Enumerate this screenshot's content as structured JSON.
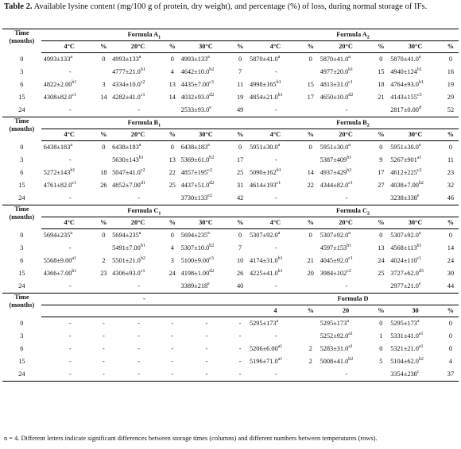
{
  "caption": {
    "label": "Table 2.",
    "text": "Available lysine content (mg/100 g of protein, dry weight), and percentage (%) of loss, during normal storage of IFs."
  },
  "time_header": "Time (months)",
  "temp_headers": [
    "4°C",
    "%",
    "20°C",
    "%",
    "30°C",
    "%"
  ],
  "temp_headers_d": [
    "4",
    "%",
    "20",
    "%",
    "30",
    "%"
  ],
  "blocks": [
    {
      "left_formula": {
        "name": "Formula A",
        "sub": "1"
      },
      "right_formula": {
        "name": "Formula A",
        "sub": "2"
      },
      "rows": [
        {
          "time": "0",
          "cells": [
            [
              "4993±133",
              "a"
            ],
            [
              "0",
              ""
            ],
            [
              "4993±133",
              "a"
            ],
            [
              "0",
              ""
            ],
            [
              "4993±133",
              "a"
            ],
            [
              "0",
              ""
            ],
            [
              "5870±41.0",
              "a"
            ],
            [
              "0",
              ""
            ],
            [
              "5870±41.0",
              "a"
            ],
            [
              "0",
              ""
            ],
            [
              "5870±41.0",
              "a"
            ],
            [
              "0",
              ""
            ]
          ]
        },
        {
          "time": "3",
          "cells": [
            [
              "-",
              ""
            ],
            [
              "",
              ""
            ],
            [
              "4777±21.0",
              "b1"
            ],
            [
              "4",
              ""
            ],
            [
              "4642±10.0",
              "b2"
            ],
            [
              "7",
              ""
            ],
            [
              "-",
              ""
            ],
            [
              "",
              ""
            ],
            [
              "4977±20.0",
              "b1"
            ],
            [
              "15",
              ""
            ],
            [
              "4940±124",
              "b1"
            ],
            [
              "16",
              ""
            ]
          ]
        },
        {
          "time": "6",
          "cells": [
            [
              "4822±2.00",
              "b1"
            ],
            [
              "3",
              ""
            ],
            [
              "4334±10.0",
              "c2"
            ],
            [
              "13",
              ""
            ],
            [
              "4435±7.00",
              "c3"
            ],
            [
              "11",
              ""
            ],
            [
              "4998±165",
              "b1"
            ],
            [
              "15",
              ""
            ],
            [
              "4813±31.0",
              "c1"
            ],
            [
              "18",
              ""
            ],
            [
              "4764±93.0",
              "b1"
            ],
            [
              "19",
              ""
            ]
          ]
        },
        {
          "time": "15",
          "cells": [
            [
              "4308±82.0",
              "c1"
            ],
            [
              "14",
              ""
            ],
            [
              "4282±41.0",
              "c1"
            ],
            [
              "14",
              ""
            ],
            [
              "4032±93.0",
              "d2"
            ],
            [
              "19",
              ""
            ],
            [
              "4854±21.0",
              "b1"
            ],
            [
              "17",
              ""
            ],
            [
              "4650±10.0",
              "d2"
            ],
            [
              "21",
              ""
            ],
            [
              "4143±155",
              "c3"
            ],
            [
              "29",
              ""
            ]
          ]
        },
        {
          "time": "24",
          "cells": [
            [
              "-",
              ""
            ],
            [
              "",
              ""
            ],
            [
              "-",
              ""
            ],
            [
              "",
              ""
            ],
            [
              "2533±93.0",
              "e"
            ],
            [
              "49",
              ""
            ],
            [
              "-",
              ""
            ],
            [
              "",
              ""
            ],
            [
              "-",
              ""
            ],
            [
              "",
              ""
            ],
            [
              "2817±0.00",
              "d"
            ],
            [
              "52",
              ""
            ]
          ]
        }
      ]
    },
    {
      "left_formula": {
        "name": "Formula B",
        "sub": "1"
      },
      "right_formula": {
        "name": "Formula B",
        "sub": "2"
      },
      "rows": [
        {
          "time": "0",
          "cells": [
            [
              "6438±183",
              "a"
            ],
            [
              "0",
              ""
            ],
            [
              "6438±183",
              "a"
            ],
            [
              "0",
              ""
            ],
            [
              "6438±183",
              "a"
            ],
            [
              "0",
              ""
            ],
            [
              "5951±30.0",
              "a"
            ],
            [
              "0",
              ""
            ],
            [
              "5951±30.0",
              "a"
            ],
            [
              "0",
              ""
            ],
            [
              "5951±30.0",
              "a"
            ],
            [
              "0",
              ""
            ]
          ]
        },
        {
          "time": "3",
          "cells": [
            [
              "-",
              ""
            ],
            [
              "",
              ""
            ],
            [
              "5630±143",
              "b1"
            ],
            [
              "13",
              ""
            ],
            [
              "5369±61.0",
              "b2"
            ],
            [
              "17",
              ""
            ],
            [
              "-",
              ""
            ],
            [
              "",
              ""
            ],
            [
              "5387±409",
              "b1"
            ],
            [
              "9",
              ""
            ],
            [
              "5267±901",
              "a1"
            ],
            [
              "11",
              ""
            ]
          ]
        },
        {
          "time": "6",
          "cells": [
            [
              "5272±143",
              "b1"
            ],
            [
              "18",
              ""
            ],
            [
              "5047±41.0",
              "c2"
            ],
            [
              "22",
              ""
            ],
            [
              "4857±195",
              "c2"
            ],
            [
              "25",
              ""
            ],
            [
              "5090±162",
              "b1"
            ],
            [
              "14",
              ""
            ],
            [
              "4937±429",
              "b2"
            ],
            [
              "17",
              ""
            ],
            [
              "4612±225",
              "c2"
            ],
            [
              "23",
              ""
            ]
          ]
        },
        {
          "time": "15",
          "cells": [
            [
              "4761±82.0",
              "c1"
            ],
            [
              "26",
              ""
            ],
            [
              "4852±7.00",
              "d1"
            ],
            [
              "25",
              ""
            ],
            [
              "4437±51.0",
              "d2"
            ],
            [
              "31",
              ""
            ],
            [
              "4614±193",
              "c1"
            ],
            [
              "22",
              ""
            ],
            [
              "4344±82.0",
              "c1"
            ],
            [
              "27",
              ""
            ],
            [
              "4038±7.00",
              "b2"
            ],
            [
              "32",
              ""
            ]
          ]
        },
        {
          "time": "24",
          "cells": [
            [
              "-",
              ""
            ],
            [
              "",
              ""
            ],
            [
              "-",
              ""
            ],
            [
              "",
              ""
            ],
            [
              "3730±133",
              "e2"
            ],
            [
              "42",
              ""
            ],
            [
              "-",
              ""
            ],
            [
              "",
              ""
            ],
            [
              "-",
              ""
            ],
            [
              "",
              ""
            ],
            [
              "3238±338",
              "e"
            ],
            [
              "46",
              ""
            ]
          ]
        }
      ]
    },
    {
      "left_formula": {
        "name": "Formula C",
        "sub": "1"
      },
      "right_formula": {
        "name": "Formula C",
        "sub": "2"
      },
      "rows": [
        {
          "time": "0",
          "cells": [
            [
              "5694±235",
              "a"
            ],
            [
              "0",
              ""
            ],
            [
              "5694±235",
              "a"
            ],
            [
              "0",
              ""
            ],
            [
              "5694±235",
              "a"
            ],
            [
              "0",
              ""
            ],
            [
              "5307±92.0",
              "a"
            ],
            [
              "0",
              ""
            ],
            [
              "5307±92.0",
              "a"
            ],
            [
              "0",
              ""
            ],
            [
              "5307±92.0",
              "a"
            ],
            [
              "0",
              ""
            ]
          ]
        },
        {
          "time": "3",
          "cells": [
            [
              "-",
              ""
            ],
            [
              "",
              ""
            ],
            [
              "5491±7.00",
              "b1"
            ],
            [
              "4",
              ""
            ],
            [
              "5307±10.0",
              "b2"
            ],
            [
              "7",
              ""
            ],
            [
              "-",
              ""
            ],
            [
              "",
              ""
            ],
            [
              "4597±153",
              "b1"
            ],
            [
              "13",
              ""
            ],
            [
              "4568±113",
              "b1"
            ],
            [
              "14",
              ""
            ]
          ]
        },
        {
          "time": "6",
          "cells": [
            [
              "5568±9.00",
              "a1"
            ],
            [
              "2",
              ""
            ],
            [
              "5501±21.0",
              "b2"
            ],
            [
              "3",
              ""
            ],
            [
              "5100±9.00",
              "c3"
            ],
            [
              "10",
              ""
            ],
            [
              "4174±31.0",
              "b1"
            ],
            [
              "21",
              ""
            ],
            [
              "4045±92.0",
              "c1"
            ],
            [
              "24",
              ""
            ],
            [
              "4024±110",
              "c1"
            ],
            [
              "24",
              ""
            ]
          ]
        },
        {
          "time": "15",
          "cells": [
            [
              "4366±7.00",
              "b1"
            ],
            [
              "23",
              ""
            ],
            [
              "4306±93.0",
              "c1"
            ],
            [
              "24",
              ""
            ],
            [
              "4198±1.00",
              "d2"
            ],
            [
              "26",
              ""
            ],
            [
              "4225±41.0",
              "b1"
            ],
            [
              "20",
              ""
            ],
            [
              "3984±102",
              "c2"
            ],
            [
              "25",
              ""
            ],
            [
              "3727±62.0",
              "d3"
            ],
            [
              "30",
              ""
            ]
          ]
        },
        {
          "time": "24",
          "cells": [
            [
              "-",
              ""
            ],
            [
              "",
              ""
            ],
            [
              "-",
              ""
            ],
            [
              "",
              ""
            ],
            [
              "3389±218",
              "e"
            ],
            [
              "40",
              ""
            ],
            [
              "-",
              ""
            ],
            [
              "",
              ""
            ],
            [
              "-",
              ""
            ],
            [
              "",
              ""
            ],
            [
              "2977±21.0",
              "e"
            ],
            [
              "44",
              ""
            ]
          ]
        }
      ]
    },
    {
      "left_formula": {
        "name": "-",
        "sub": ""
      },
      "right_formula": {
        "name": "Formula D",
        "sub": ""
      },
      "rows": [
        {
          "time": "0",
          "cells": [
            [
              "-",
              ""
            ],
            [
              "-",
              ""
            ],
            [
              "-",
              ""
            ],
            [
              "-",
              ""
            ],
            [
              "-",
              ""
            ],
            [
              "-",
              ""
            ],
            [
              "5295±173",
              "a"
            ],
            [
              "",
              ""
            ],
            [
              "5295±173",
              "a"
            ],
            [
              "0",
              ""
            ],
            [
              "5295±173",
              "a"
            ],
            [
              "0",
              ""
            ]
          ]
        },
        {
          "time": "3",
          "cells": [
            [
              "-",
              ""
            ],
            [
              "-",
              ""
            ],
            [
              "-",
              ""
            ],
            [
              "-",
              ""
            ],
            [
              "-",
              ""
            ],
            [
              "-",
              ""
            ],
            [
              "-",
              ""
            ],
            [
              "",
              ""
            ],
            [
              "5252±92.0",
              "a1"
            ],
            [
              "1",
              ""
            ],
            [
              "5331±41.0",
              "a1"
            ],
            [
              "0",
              ""
            ]
          ]
        },
        {
          "time": "6",
          "cells": [
            [
              "-",
              ""
            ],
            [
              "-",
              ""
            ],
            [
              "-",
              ""
            ],
            [
              "-",
              ""
            ],
            [
              "-",
              ""
            ],
            [
              "-",
              ""
            ],
            [
              "5206±6.00",
              "a1"
            ],
            [
              "2",
              ""
            ],
            [
              "5283±31.0",
              "a1"
            ],
            [
              "0",
              ""
            ],
            [
              "5321±21.0",
              "a1"
            ],
            [
              "0",
              ""
            ]
          ]
        },
        {
          "time": "15",
          "cells": [
            [
              "-",
              ""
            ],
            [
              "-",
              ""
            ],
            [
              "-",
              ""
            ],
            [
              "-",
              ""
            ],
            [
              "-",
              ""
            ],
            [
              "-",
              ""
            ],
            [
              "5196±71.0",
              "a1"
            ],
            [
              "2",
              ""
            ],
            [
              "5008±41.0",
              "b2"
            ],
            [
              "5",
              ""
            ],
            [
              "5104±62.0",
              "b2"
            ],
            [
              "4",
              ""
            ]
          ]
        },
        {
          "time": "24",
          "cells": [
            [
              "-",
              ""
            ],
            [
              "-",
              ""
            ],
            [
              "-",
              ""
            ],
            [
              "-",
              ""
            ],
            [
              "-",
              ""
            ],
            [
              "-",
              ""
            ],
            [
              "-",
              ""
            ],
            [
              "",
              ""
            ],
            [
              "-",
              ""
            ],
            [
              "",
              ""
            ],
            [
              "3354±238",
              "c"
            ],
            [
              "37",
              ""
            ]
          ]
        }
      ]
    }
  ],
  "footnote": "n = 4. Different letters indicate significant differences between storage times (columns) and different numbers between temperatures (rows)."
}
